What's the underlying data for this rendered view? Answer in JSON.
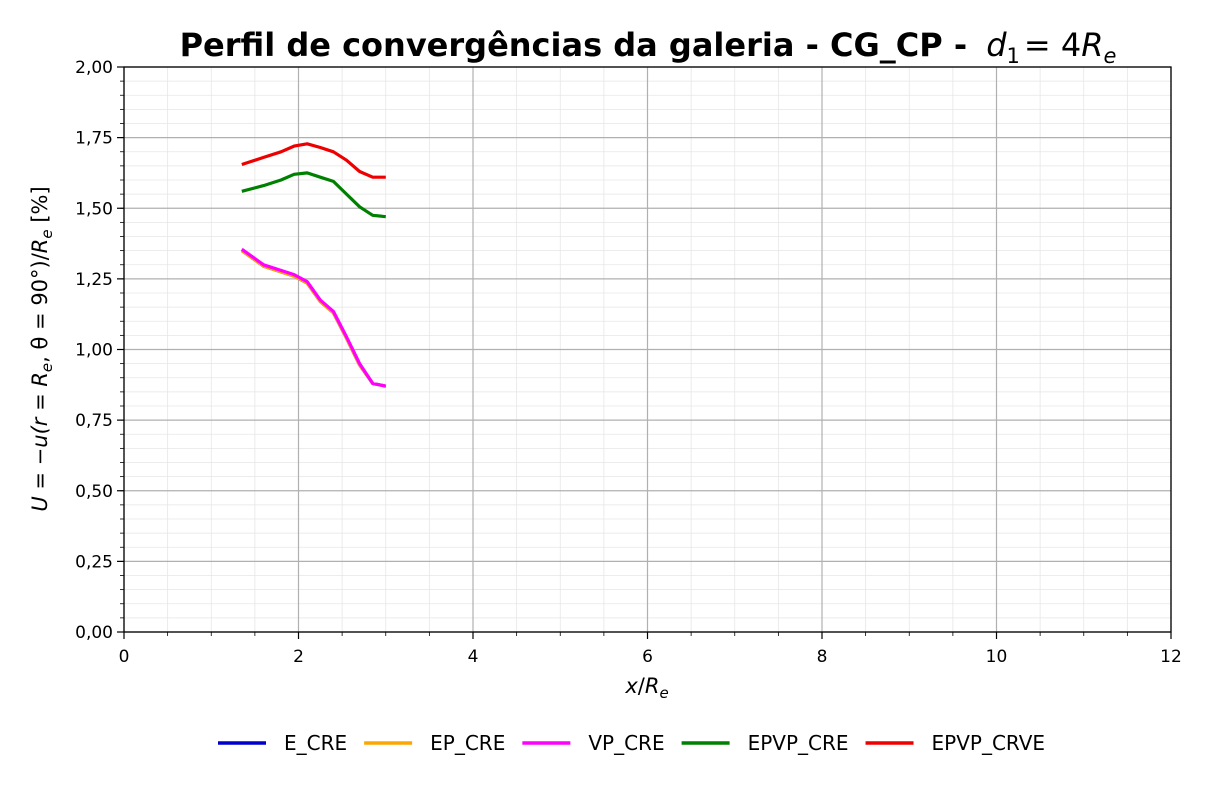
{
  "chart_data": {
    "type": "line",
    "title_text": "Perfil de convergências da galeria - CG_CP -",
    "title_math": {
      "var": "d",
      "sub": "1",
      "rhs": "= 4",
      "rhs_var": "R",
      "rhs_sub": "e"
    },
    "xlabel": {
      "num": "x",
      "den": "R",
      "den_sub": "e"
    },
    "ylabel": {
      "p1": "U = −u(r = ",
      "R": "R",
      "Rsub": "e",
      "p2": ", θ = 90°)/",
      "R2": "R",
      "R2sub": "e",
      "p3": " [%]"
    },
    "xlim": [
      0,
      12
    ],
    "ylim": [
      0,
      2
    ],
    "x_ticks": [
      0,
      2,
      4,
      6,
      8,
      10,
      12
    ],
    "x_tick_labels": [
      "0",
      "2",
      "4",
      "6",
      "8",
      "10",
      "12"
    ],
    "y_ticks": [
      0,
      0.25,
      0.5,
      0.75,
      1.0,
      1.25,
      1.5,
      1.75,
      2.0
    ],
    "y_tick_labels": [
      "0,00",
      "0,25",
      "0,50",
      "0,75",
      "1,00",
      "1,25",
      "1,50",
      "1,75",
      "2,00"
    ],
    "grid": true,
    "minor_grid": true,
    "legend_position": "bottom-center",
    "series": [
      {
        "name": "E_CRE",
        "color": "#0000cc",
        "x": [
          1.35,
          1.6,
          1.95,
          2.1,
          2.25,
          2.4,
          2.55,
          2.7,
          2.85,
          3.0
        ],
        "y": [
          1.35,
          1.295,
          1.26,
          1.235,
          1.17,
          1.13,
          1.04,
          0.945,
          0.88,
          0.87
        ]
      },
      {
        "name": "EP_CRE",
        "color": "#ffa500",
        "x": [
          1.35,
          1.6,
          1.95,
          2.1,
          2.25,
          2.4,
          2.55,
          2.7,
          2.85,
          3.0
        ],
        "y": [
          1.35,
          1.295,
          1.26,
          1.235,
          1.17,
          1.13,
          1.04,
          0.945,
          0.88,
          0.87
        ]
      },
      {
        "name": "VP_CRE",
        "color": "#ff00ff",
        "x": [
          1.35,
          1.6,
          1.95,
          2.1,
          2.25,
          2.4,
          2.55,
          2.7,
          2.85,
          3.0
        ],
        "y": [
          1.355,
          1.3,
          1.265,
          1.24,
          1.175,
          1.135,
          1.045,
          0.95,
          0.88,
          0.87
        ]
      },
      {
        "name": "EPVP_CRE",
        "color": "#008000",
        "x": [
          1.35,
          1.6,
          1.8,
          1.95,
          2.1,
          2.25,
          2.4,
          2.55,
          2.7,
          2.85,
          3.0
        ],
        "y": [
          1.56,
          1.58,
          1.6,
          1.62,
          1.625,
          1.61,
          1.595,
          1.55,
          1.505,
          1.475,
          1.47
        ]
      },
      {
        "name": "EPVP_CRVE",
        "color": "#ee0000",
        "x": [
          1.35,
          1.6,
          1.8,
          1.95,
          2.1,
          2.25,
          2.4,
          2.55,
          2.7,
          2.85,
          3.0
        ],
        "y": [
          1.655,
          1.68,
          1.7,
          1.72,
          1.728,
          1.715,
          1.7,
          1.67,
          1.63,
          1.61,
          1.61
        ]
      }
    ]
  }
}
